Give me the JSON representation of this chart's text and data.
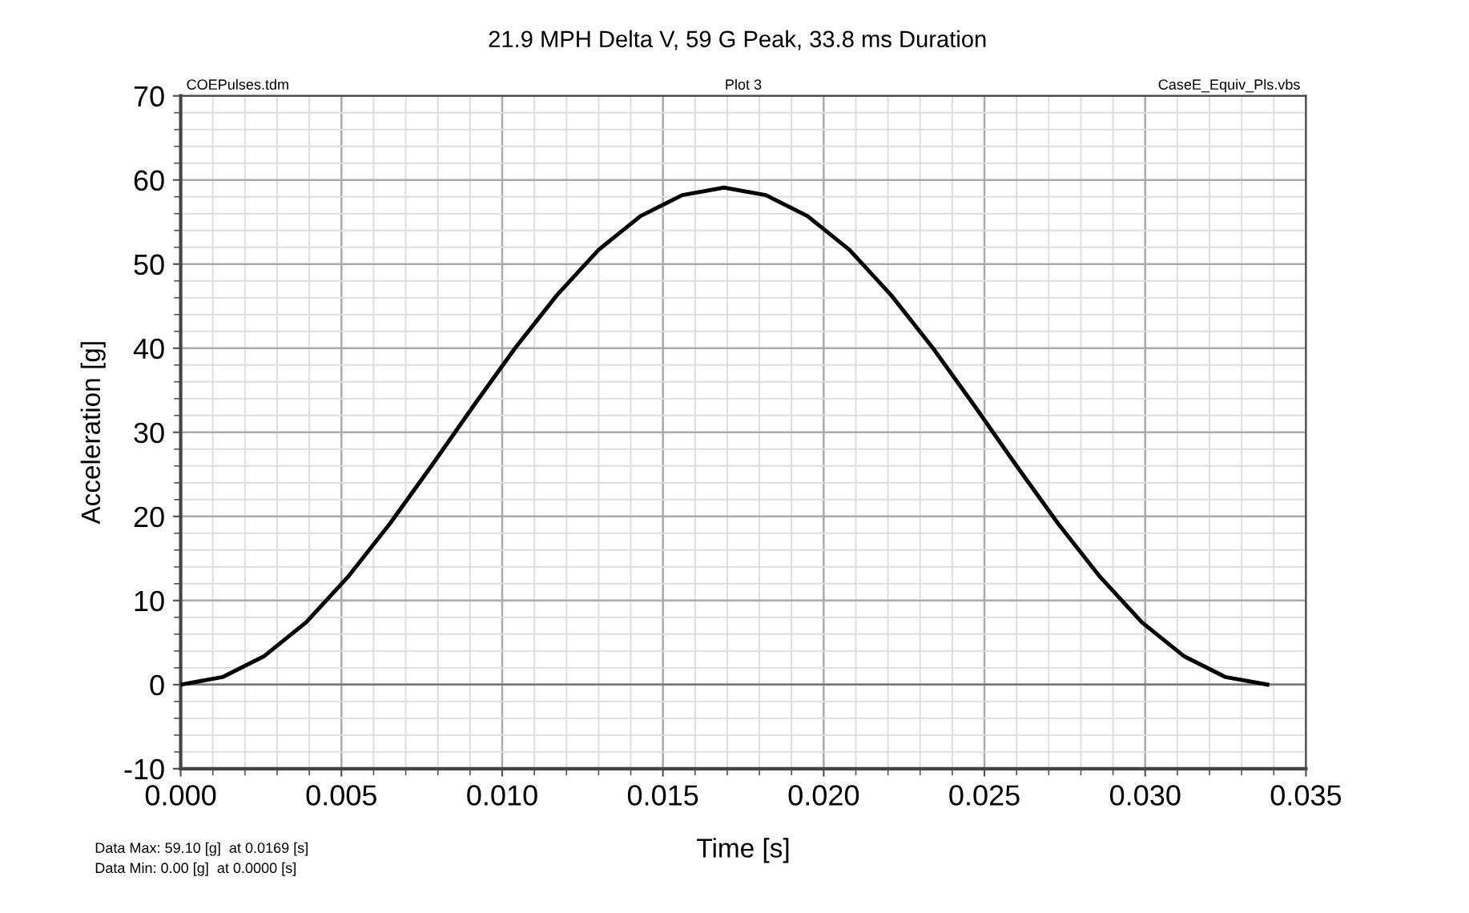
{
  "chart_data": {
    "type": "line",
    "title": "21.9 MPH Delta V, 59 G Peak, 33.8 ms Duration",
    "xlabel": "Time [s]",
    "ylabel": "Acceleration [g]",
    "x": [
      0,
      0.0013,
      0.0026,
      0.0039,
      0.0052,
      0.0065,
      0.0078,
      0.0091,
      0.0104,
      0.0117,
      0.013,
      0.0143,
      0.0156,
      0.0169,
      0.0182,
      0.0195,
      0.0208,
      0.0221,
      0.0234,
      0.0247,
      0.026,
      0.0273,
      0.0286,
      0.0299,
      0.0312,
      0.0325,
      0.0338
    ],
    "series": [
      {
        "color": "#000000",
        "values": [
          0,
          0.9,
          3.4,
          7.4,
          12.8,
          19.1,
          26.0,
          33.1,
          40.0,
          46.3,
          51.7,
          55.7,
          58.2,
          59.1,
          58.2,
          55.7,
          51.7,
          46.3,
          40.0,
          33.1,
          26.0,
          19.1,
          12.8,
          7.4,
          3.4,
          0.9,
          0
        ]
      }
    ],
    "xlim": [
      0,
      0.035
    ],
    "xticks": [
      {
        "value": 0,
        "label": "0.000"
      },
      {
        "value": 0.005,
        "label": "0.005"
      },
      {
        "value": 0.01,
        "label": "0.010"
      },
      {
        "value": 0.015,
        "label": "0.015"
      },
      {
        "value": 0.02,
        "label": "0.020"
      },
      {
        "value": 0.025,
        "label": "0.025"
      },
      {
        "value": 0.03,
        "label": "0.030"
      },
      {
        "value": 0.035,
        "label": "0.035"
      }
    ],
    "ylim": [
      -10,
      70
    ],
    "yticks": [
      -10,
      0,
      10,
      20,
      30,
      40,
      50,
      60,
      70
    ],
    "grid": true,
    "marker": "none",
    "line_style": "solid",
    "annotations": [
      "COEPulses.tdm",
      "Plot 3",
      "CaseE_Equiv_Pls.vbs",
      "Data Max: 59.10 [g]  at 0.0169 [s]",
      "Data Min: 0.00 [g]  at 0.0000 [s]"
    ]
  }
}
